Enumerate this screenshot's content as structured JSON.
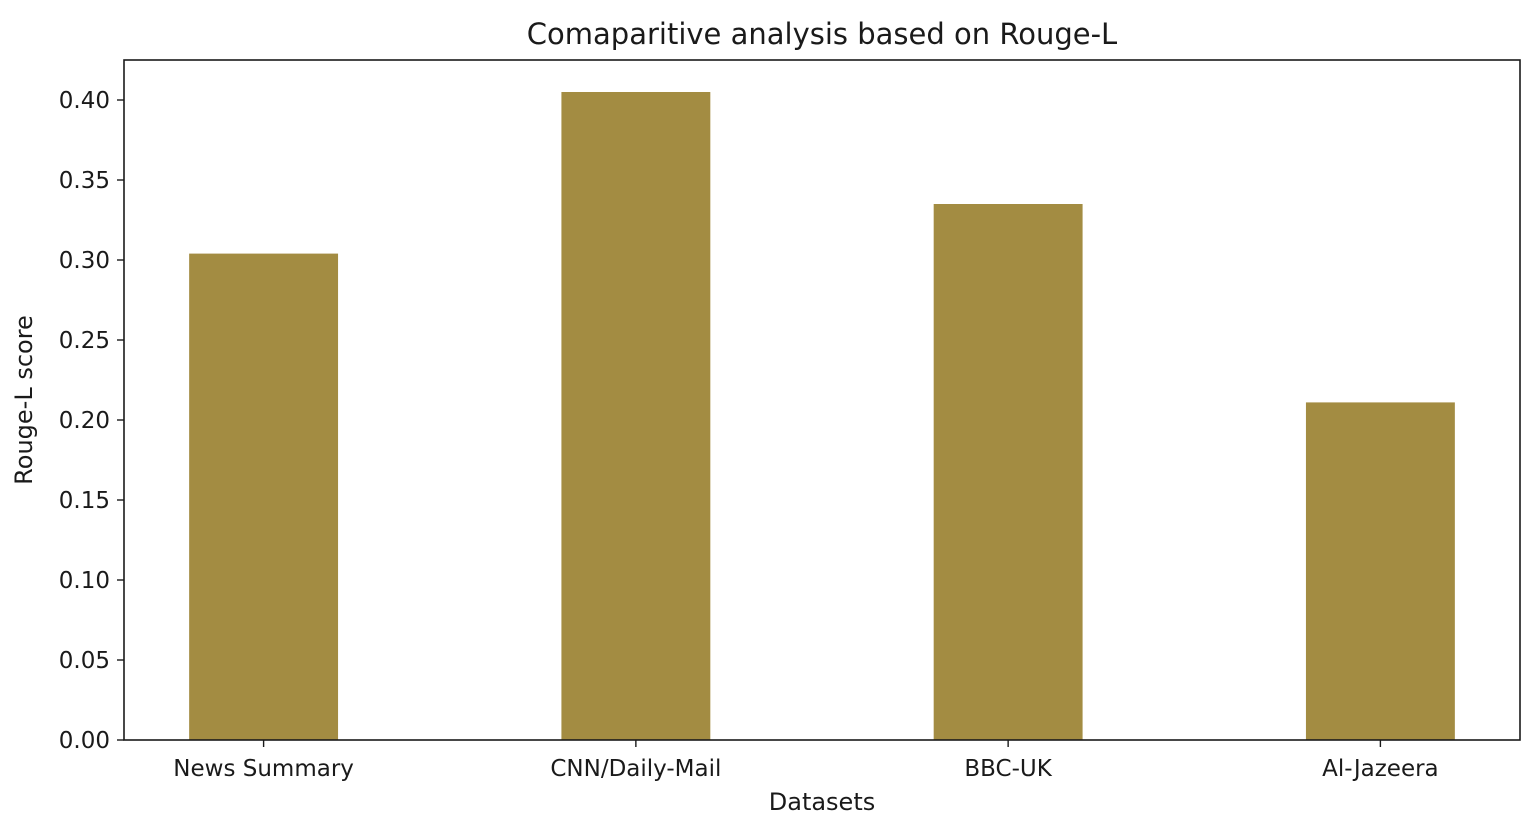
{
  "chart_data": {
    "type": "bar",
    "title": "Comaparitive analysis based on Rouge-L",
    "xlabel": "Datasets",
    "ylabel": "Rouge-L score",
    "categories": [
      "News Summary",
      "CNN/Daily-Mail",
      "BBC-UK",
      "Al-Jazeera"
    ],
    "values": [
      0.304,
      0.405,
      0.335,
      0.211
    ],
    "ylim": [
      0,
      0.425
    ],
    "yticks": [
      "0.00",
      "0.05",
      "0.10",
      "0.15",
      "0.20",
      "0.25",
      "0.30",
      "0.35",
      "0.40"
    ],
    "bar_color": "#a38c42",
    "grid": false,
    "legend": "none"
  }
}
